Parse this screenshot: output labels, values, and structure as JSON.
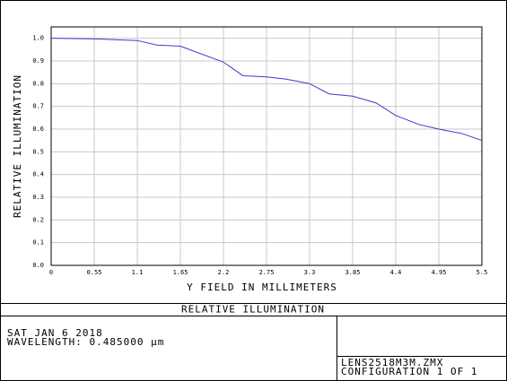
{
  "chart_data": {
    "type": "line",
    "title": "RELATIVE ILLUMINATION",
    "xlabel": "Y FIELD IN MILLIMETERS",
    "ylabel": "RELATIVE ILLUMINATION",
    "x": [
      0,
      0.55,
      1.1,
      1.35,
      1.65,
      2.2,
      2.45,
      2.75,
      3.0,
      3.3,
      3.55,
      3.85,
      4.15,
      4.4,
      4.7,
      4.95,
      5.25,
      5.5
    ],
    "series": [
      {
        "color": "#3a3ad0",
        "values": [
          1.0,
          0.997,
          0.99,
          0.97,
          0.965,
          0.895,
          0.835,
          0.83,
          0.82,
          0.8,
          0.755,
          0.745,
          0.715,
          0.66,
          0.62,
          0.6,
          0.58,
          0.55
        ]
      }
    ],
    "xlim": [
      0,
      5.5
    ],
    "xticks": [
      0,
      0.55,
      1.1,
      1.65,
      2.2,
      2.75,
      3.3,
      3.85,
      4.4,
      4.95,
      5.5
    ],
    "ylim": [
      0,
      1.05
    ],
    "yticks": [
      {
        "value": 0,
        "label": "0.0"
      },
      0.1,
      0.2,
      0.3,
      0.4,
      0.5,
      0.6,
      0.7,
      0.8,
      0.9,
      {
        "value": 1,
        "label": "1.0"
      }
    ],
    "grid": true
  },
  "footer": {
    "date": "SAT JAN 6 2018",
    "wavelength": "WAVELENGTH: 0.485000 μm",
    "file": "LENS2518M3M.ZMX",
    "configuration": "CONFIGURATION 1 OF 1"
  }
}
